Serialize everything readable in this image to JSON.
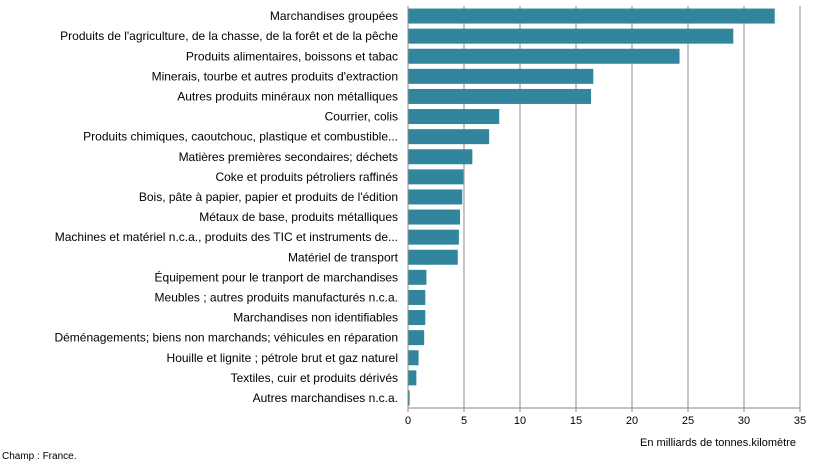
{
  "chart_data": {
    "type": "bar",
    "orientation": "horizontal",
    "title": "",
    "xlabel": "En milliards de tonnes.kilomètre",
    "ylabel": "",
    "xlim": [
      0,
      35
    ],
    "xticks": [
      0,
      5,
      10,
      15,
      20,
      25,
      30,
      35
    ],
    "grid": true,
    "bar_color": "#31859C",
    "categories": [
      "Marchandises groupées",
      "Produits de l'agriculture, de la chasse, de la forêt et de la pêche",
      "Produits alimentaires, boissons et tabac",
      "Minerais, tourbe et autres produits d'extraction",
      "Autres produits minéraux non métalliques",
      "Courrier, colis",
      "Produits chimiques, caoutchouc, plastique et combustible...",
      "Matières premières secondaires; déchets",
      "Coke et produits pétroliers raffinés",
      "Bois, pâte à papier, papier et produits de l'édition",
      "Métaux de base, produits métalliques",
      "Machines et matériel n.c.a., produits des TIC et instruments de...",
      "Matériel de transport",
      "Équipement pour le tranport de marchandises",
      "Meubles ; autres produits manufacturés n.c.a.",
      "Marchandises non identifiables",
      "Déménagements; biens non marchands; véhicules en réparation",
      "Houille et lignite ; pétrole brut et gaz naturel",
      "Textiles, cuir et produits dérivés",
      "Autres marchandises n.c.a."
    ],
    "values": [
      32.7,
      29.0,
      24.2,
      16.5,
      16.3,
      8.1,
      7.2,
      5.7,
      4.9,
      4.8,
      4.6,
      4.5,
      4.4,
      1.6,
      1.5,
      1.5,
      1.4,
      0.9,
      0.7,
      0.1
    ]
  },
  "source_note": "Champ : France."
}
